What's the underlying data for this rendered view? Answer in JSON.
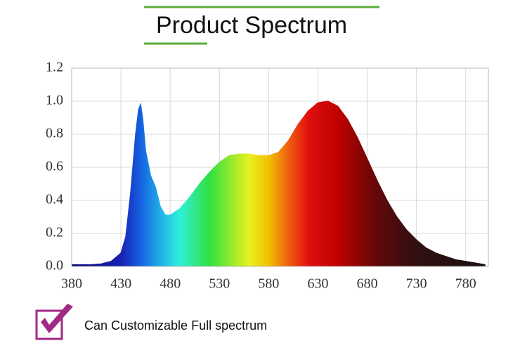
{
  "chart_data": {
    "type": "area",
    "title": "Product Spectrum",
    "caption": "Can Customizable Full spectrum",
    "x": [
      380,
      400,
      410,
      420,
      430,
      435,
      440,
      445,
      448,
      450,
      452,
      455,
      460,
      465,
      470,
      475,
      480,
      490,
      500,
      510,
      520,
      530,
      540,
      550,
      560,
      570,
      580,
      590,
      600,
      610,
      620,
      630,
      640,
      650,
      660,
      670,
      680,
      690,
      700,
      710,
      720,
      730,
      740,
      750,
      760,
      770,
      780,
      790,
      800
    ],
    "series": [
      {
        "values": [
          0.01,
          0.01,
          0.015,
          0.03,
          0.08,
          0.18,
          0.45,
          0.8,
          0.95,
          0.98,
          0.9,
          0.7,
          0.55,
          0.48,
          0.36,
          0.31,
          0.31,
          0.35,
          0.42,
          0.5,
          0.57,
          0.63,
          0.67,
          0.68,
          0.68,
          0.67,
          0.67,
          0.69,
          0.76,
          0.86,
          0.94,
          0.99,
          1.0,
          0.97,
          0.89,
          0.78,
          0.65,
          0.52,
          0.4,
          0.3,
          0.22,
          0.16,
          0.11,
          0.08,
          0.06,
          0.04,
          0.03,
          0.02,
          0.01
        ]
      }
    ],
    "xlim": [
      380,
      803
    ],
    "xticks": [
      380,
      430,
      480,
      530,
      580,
      630,
      680,
      730,
      780
    ],
    "ylim": [
      0,
      1.2
    ],
    "yticks": [
      {
        "value": 0,
        "label": "0.0"
      },
      0.2,
      0.4,
      0.6,
      0.8,
      {
        "value": 1,
        "label": "1.0"
      },
      1.2
    ],
    "grid": true
  }
}
